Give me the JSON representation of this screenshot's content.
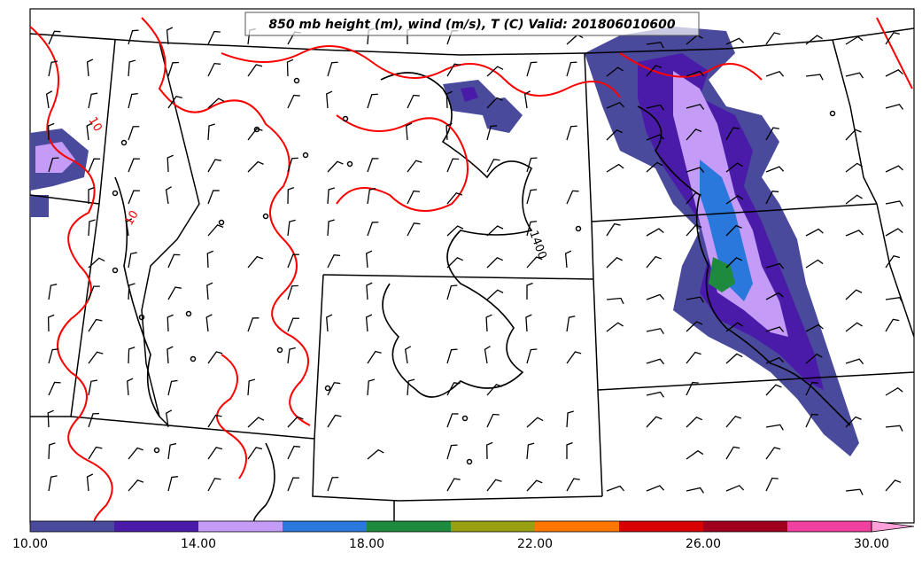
{
  "title": "850 mb height (m), wind (m/s), T (C) Valid: 201806010600",
  "colors": {
    "temperature_contour": "#ff0000",
    "height_contour": "#000000",
    "boundaries": "#000000",
    "background": "#ffffff"
  },
  "contour_labels": {
    "temperature_value": "10",
    "height_value": "1400"
  },
  "colorbar": {
    "tick_labels": [
      "10.00",
      "14.00",
      "18.00",
      "22.00",
      "26.00",
      "30.00"
    ],
    "colors": [
      "#4a4a9c",
      "#4a1aa8",
      "#c49cf8",
      "#2a78dc",
      "#1e8a3e",
      "#98a012",
      "#ff7600",
      "#d80000",
      "#a0001e",
      "#f040a0",
      "#ffa0d8"
    ],
    "extend": "max"
  },
  "wind_barbs": "grid of wind barbs across domain (m/s)",
  "zero_wind_marker": "calm-circle"
}
